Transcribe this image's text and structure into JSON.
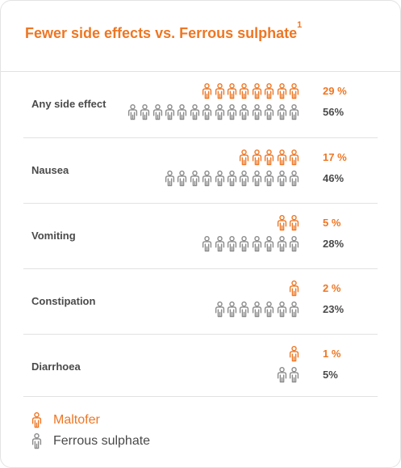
{
  "title": "Fewer side effects vs. Ferrous sulphate",
  "title_sup": "1",
  "colors": {
    "maltofer": "#ee7623",
    "ferrous": "#8a8a8a",
    "label": "#4a4a4a"
  },
  "chart_data": {
    "type": "pictogram-bar",
    "categories": [
      "Any side effect",
      "Nausea",
      "Vomiting",
      "Constipation",
      "Diarrhoea"
    ],
    "series": [
      {
        "name": "Maltofer",
        "values": [
          29,
          17,
          5,
          2,
          1
        ],
        "labels": [
          "29 %",
          "17 %",
          "5 %",
          "2 %",
          "1 %"
        ],
        "icon_counts": [
          8,
          5,
          2,
          1,
          1
        ]
      },
      {
        "name": "Ferrous sulphate",
        "values": [
          56,
          46,
          28,
          23,
          5
        ],
        "labels": [
          "56%",
          "46%",
          "28%",
          "23%",
          "5%"
        ],
        "icon_counts": [
          14,
          11,
          8,
          7,
          2
        ]
      }
    ]
  },
  "legend": [
    {
      "label": "Maltofer",
      "icon": "person-icon-orange"
    },
    {
      "label": "Ferrous sulphate",
      "icon": "person-icon-gray"
    }
  ]
}
